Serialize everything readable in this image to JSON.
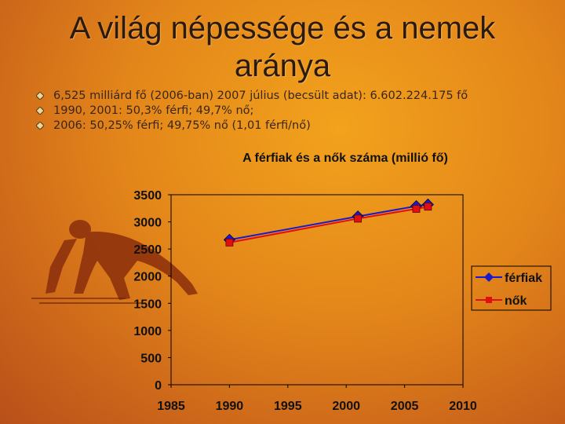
{
  "slide": {
    "title_line1": "A világ népessége és a nemek",
    "title_line2": "aránya",
    "bullets": [
      "6,525 milliárd fő (2006-ban) 2007 július (becsült adat): 6.602.224.175 fő",
      "1990, 2001: 50,3% férfi; 49,7% nő;",
      "2006: 50,25% férfi; 49,75% nő (1,01 férfi/nő)"
    ]
  },
  "chart_data": {
    "type": "line",
    "title": "A férfiak és a nők száma (millió fő)",
    "xlabel": "",
    "ylabel": "",
    "xlim": [
      1985,
      2010
    ],
    "ylim": [
      0,
      3500
    ],
    "x_ticks": [
      "1985",
      "1990",
      "1995",
      "2000",
      "2005",
      "2010"
    ],
    "y_ticks": [
      "0",
      "500",
      "1000",
      "1500",
      "2000",
      "2500",
      "3000",
      "3500"
    ],
    "legend_position": "right",
    "series": [
      {
        "name": "férfiak",
        "color": "#1a1acc",
        "marker": "diamond",
        "x": [
          1990,
          2001,
          2006,
          2007
        ],
        "y": [
          2670,
          3100,
          3290,
          3320
        ]
      },
      {
        "name": "nők",
        "color": "#e01010",
        "marker": "square",
        "x": [
          1990,
          2001,
          2006,
          2007
        ],
        "y": [
          2620,
          3060,
          3240,
          3280
        ]
      }
    ]
  }
}
